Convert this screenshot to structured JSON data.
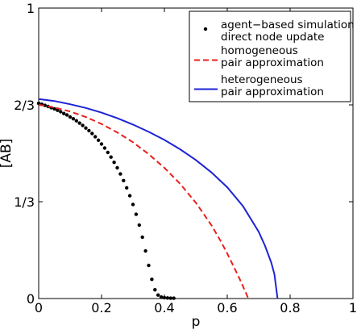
{
  "chart_data": {
    "type": "line",
    "xlabel": "p",
    "ylabel": "[AB]",
    "xlim": [
      0,
      1
    ],
    "ylim": [
      0,
      1
    ],
    "grid": false,
    "legend_position": "top-right",
    "x_ticks": [
      {
        "value": 0,
        "label": "0"
      },
      {
        "value": 0.2,
        "label": "0.2"
      },
      {
        "value": 0.4,
        "label": "0.4"
      },
      {
        "value": 0.6,
        "label": "0.6"
      },
      {
        "value": 0.8,
        "label": "0.8"
      },
      {
        "value": 1,
        "label": "1"
      }
    ],
    "y_ticks": [
      {
        "value": 0,
        "label": "0"
      },
      {
        "value": 0.3333,
        "label": "1/3"
      },
      {
        "value": 0.6667,
        "label": "2/3"
      },
      {
        "value": 1,
        "label": "1"
      }
    ],
    "series": [
      {
        "name_lines": [
          "agent−based simulation",
          "direct node update"
        ],
        "style": "dots",
        "color": "#000000",
        "x": [
          0.0,
          0.01,
          0.02,
          0.03,
          0.04,
          0.05,
          0.06,
          0.07,
          0.08,
          0.09,
          0.1,
          0.11,
          0.12,
          0.13,
          0.14,
          0.15,
          0.16,
          0.17,
          0.18,
          0.19,
          0.2,
          0.21,
          0.22,
          0.23,
          0.24,
          0.25,
          0.26,
          0.27,
          0.28,
          0.29,
          0.3,
          0.31,
          0.32,
          0.33,
          0.34,
          0.35,
          0.36,
          0.37,
          0.38,
          0.39,
          0.4,
          0.41,
          0.42,
          0.43
        ],
        "y": [
          0.672,
          0.669,
          0.665,
          0.661,
          0.657,
          0.653,
          0.648,
          0.643,
          0.637,
          0.632,
          0.625,
          0.619,
          0.612,
          0.604,
          0.596,
          0.587,
          0.578,
          0.568,
          0.557,
          0.545,
          0.532,
          0.518,
          0.503,
          0.487,
          0.469,
          0.45,
          0.429,
          0.406,
          0.381,
          0.354,
          0.324,
          0.29,
          0.253,
          0.211,
          0.164,
          0.114,
          0.066,
          0.03,
          0.012,
          0.005,
          0.003,
          0.002,
          0.001,
          0.001
        ]
      },
      {
        "name_lines": [
          "homogeneous",
          "pair approximation"
        ],
        "style": "dashed",
        "color": "#e8201c",
        "x": [
          0,
          0.05,
          0.1,
          0.15,
          0.2,
          0.25,
          0.3,
          0.35,
          0.4,
          0.45,
          0.5,
          0.55,
          0.58,
          0.6,
          0.62,
          0.64,
          0.65,
          0.66,
          0.667
        ],
        "y": [
          0.667,
          0.658,
          0.644,
          0.625,
          0.601,
          0.572,
          0.538,
          0.497,
          0.45,
          0.395,
          0.33,
          0.252,
          0.196,
          0.155,
          0.111,
          0.066,
          0.042,
          0.018,
          0.0
        ]
      },
      {
        "name_lines": [
          "heterogeneous",
          "pair approximation"
        ],
        "style": "solid",
        "color": "#1d23d6",
        "x": [
          0,
          0.05,
          0.1,
          0.15,
          0.2,
          0.25,
          0.3,
          0.35,
          0.4,
          0.45,
          0.5,
          0.55,
          0.6,
          0.65,
          0.7,
          0.72,
          0.74,
          0.75,
          0.76
        ],
        "y": [
          0.687,
          0.68,
          0.669,
          0.656,
          0.64,
          0.621,
          0.599,
          0.574,
          0.546,
          0.514,
          0.477,
          0.434,
          0.383,
          0.318,
          0.23,
          0.182,
          0.124,
          0.084,
          0.0
        ]
      }
    ]
  }
}
